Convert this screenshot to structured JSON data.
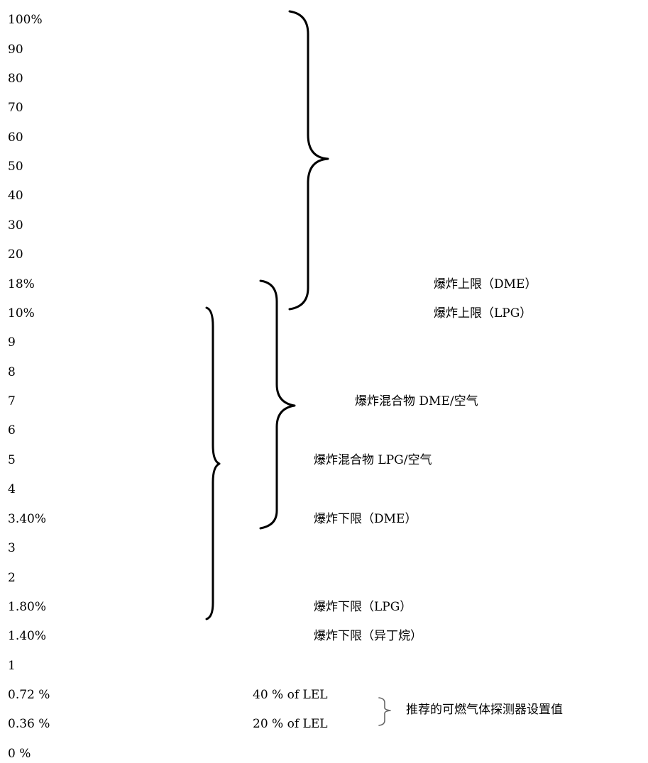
{
  "scale_labels": [
    "100%",
    "90",
    "80",
    "70",
    "60",
    "50",
    "40",
    "30",
    "20",
    "18%",
    "10%",
    "9",
    "8",
    "7",
    "6",
    "5",
    "4",
    "3.40%",
    "3",
    "2",
    "1.80%",
    "1.40%",
    "1",
    "0.72 %",
    "0.36 %",
    "0 %"
  ],
  "labels": {
    "uel_dme": "爆炸上限（DME）",
    "uel_lpg": "爆炸上限（LPG）",
    "mix_dme": "爆炸混合物 DME/空气",
    "mix_lpg": "爆炸混合物 LPG/空气",
    "lel_dme": "爆炸下限（DME）",
    "lel_lpg": "爆炸下限（LPG）",
    "lel_isobutane": "爆炸下限（异丁烷）",
    "lel_40": "40 % of LEL",
    "lel_20": "20 % of LEL",
    "detector": "推荐的可燃气体探测器设置值"
  }
}
